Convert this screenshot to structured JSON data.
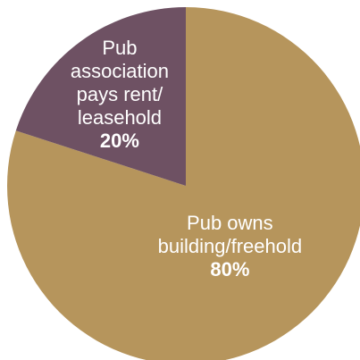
{
  "chart_data": {
    "type": "pie",
    "start_angle_deg": 0,
    "direction": "clockwise",
    "slices": [
      {
        "label_lines": [
          "Pub owns",
          "building/freehold"
        ],
        "value": 80,
        "value_label": "80%",
        "color": "#B6955C"
      },
      {
        "label_lines": [
          "Pub",
          "association",
          "pays rent/",
          "leasehold"
        ],
        "value": 20,
        "value_label": "20%",
        "color": "#6E5163"
      }
    ]
  }
}
